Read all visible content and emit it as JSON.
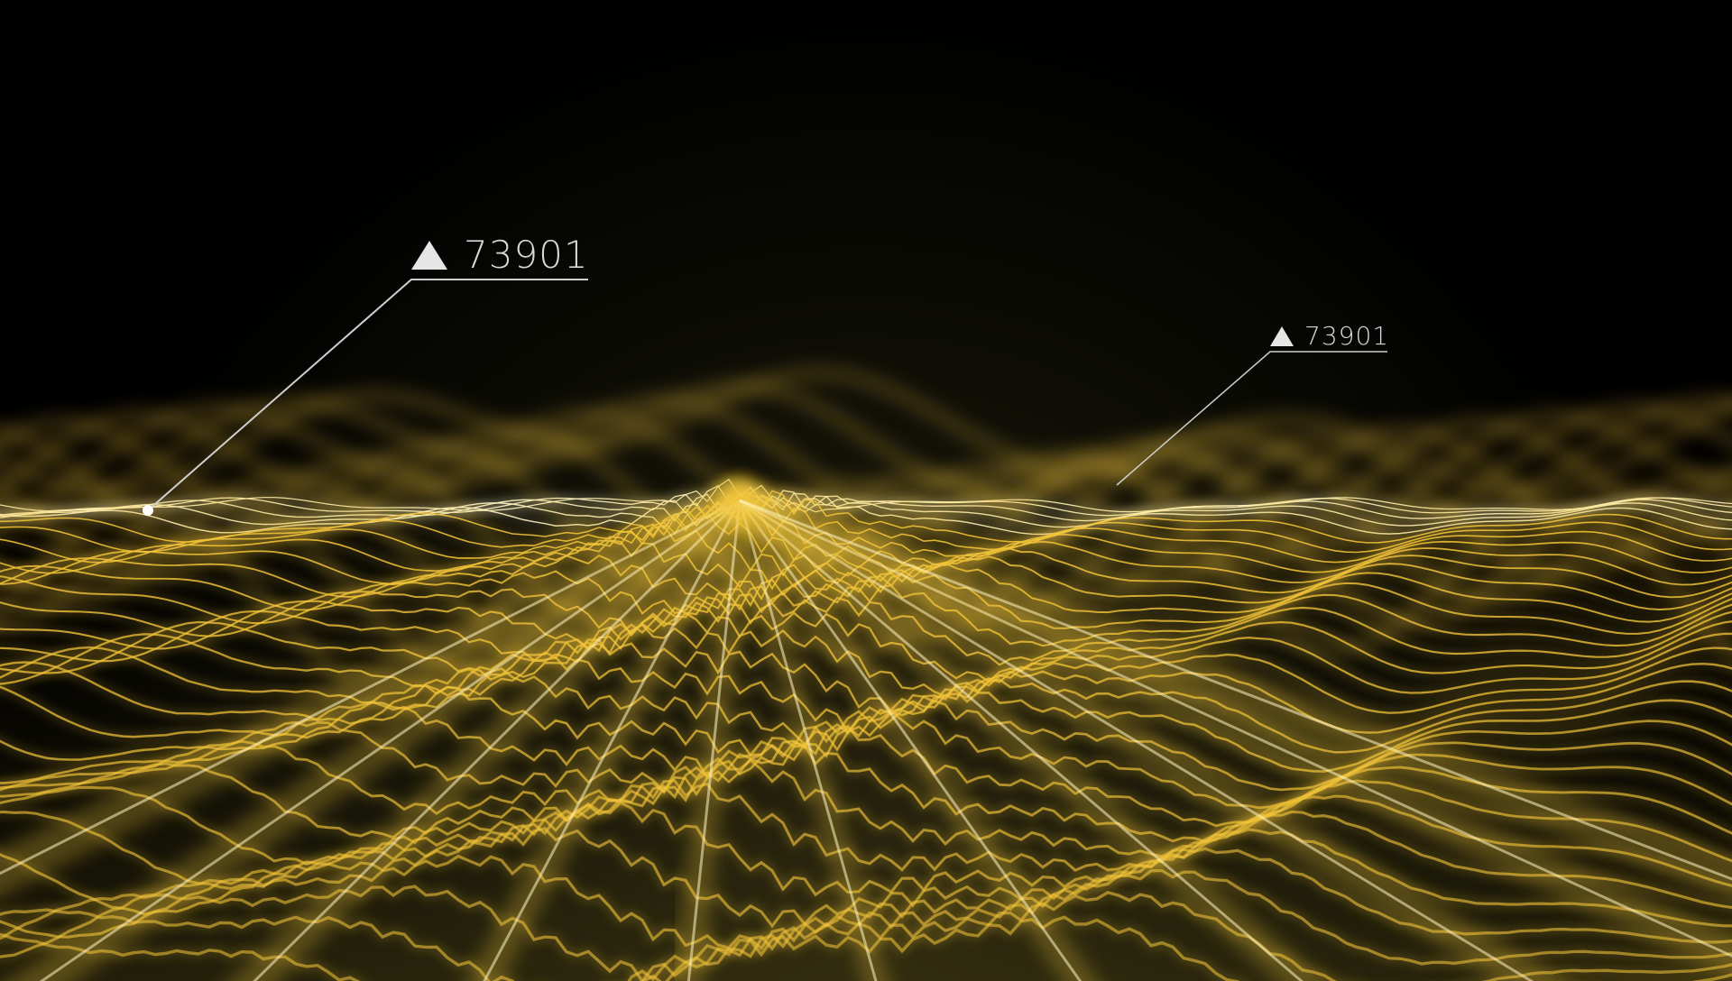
{
  "scene": {
    "background_color": "#000000",
    "wave_color": "#f2c43a",
    "wave_highlight_color": "#fff4c2"
  },
  "callouts": [
    {
      "icon": "triangle-up-icon",
      "value": "73901"
    },
    {
      "icon": "triangle-up-icon",
      "value": "73901"
    }
  ]
}
